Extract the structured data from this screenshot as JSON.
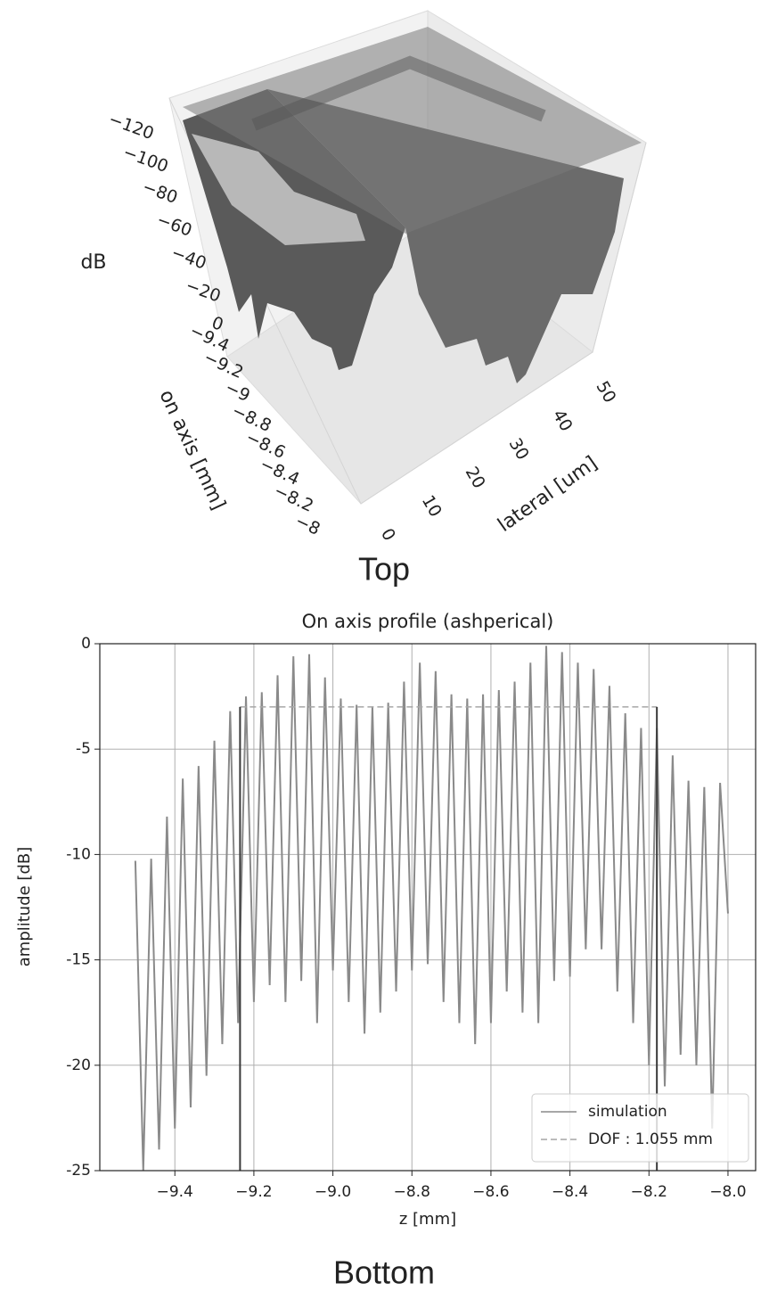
{
  "chart_data": [
    {
      "type": "surface3d",
      "caption": "Top",
      "xlabel": "on axis [mm]",
      "ylabel": "lateral [um]",
      "zlabel": "dB",
      "xlim": [
        -9.5,
        -7.95
      ],
      "ylim": [
        0,
        55
      ],
      "zlim": [
        -130,
        5
      ],
      "xticks": [
        {
          "value": -9.4,
          "label": "−9.4"
        },
        {
          "value": -9.2,
          "label": "−9.2"
        },
        {
          "value": -9,
          "label": "−9"
        },
        {
          "value": -8.8,
          "label": "−8.8"
        },
        {
          "value": -8.6,
          "label": "−8.6"
        },
        {
          "value": -8.4,
          "label": "−8.4"
        },
        {
          "value": -8.2,
          "label": "−8.2"
        },
        {
          "value": -8,
          "label": "−8"
        }
      ],
      "yticks": [
        0,
        10,
        20,
        30,
        40,
        50
      ],
      "zticks": [
        0,
        {
          "value": -20,
          "label": "−20"
        },
        {
          "value": -40,
          "label": "−40"
        },
        {
          "value": -60,
          "label": "−60"
        },
        {
          "value": -80,
          "label": "−80"
        },
        {
          "value": -100,
          "label": "−100"
        },
        {
          "value": -120,
          "label": "−120"
        }
      ]
    },
    {
      "type": "line",
      "caption": "Bottom",
      "title": "On axis profile (ashperical)",
      "xlabel": "z [mm]",
      "ylabel": "amplitude [dB]",
      "xlim": [
        -9.59,
        -7.93
      ],
      "ylim": [
        -25,
        0
      ],
      "xticks": [
        {
          "value": -9.4,
          "label": "−9.4"
        },
        {
          "value": -9.2,
          "label": "−9.2"
        },
        {
          "value": -9.0,
          "label": "−9.0"
        },
        {
          "value": -8.8,
          "label": "−8.8"
        },
        {
          "value": -8.6,
          "label": "−8.6"
        },
        {
          "value": -8.4,
          "label": "−8.4"
        },
        {
          "value": -8.2,
          "label": "−8.2"
        },
        {
          "value": -8.0,
          "label": "−8.0"
        }
      ],
      "yticks": [
        0,
        -5,
        -10,
        -15,
        -20,
        -25
      ],
      "grid": true,
      "legend": "lower right",
      "series": [
        {
          "name": "simulation",
          "color": "#8a8a8a",
          "style": "solid",
          "x": [
            -9.5,
            -9.48,
            -9.46,
            -9.44,
            -9.42,
            -9.4,
            -9.38,
            -9.36,
            -9.34,
            -9.32,
            -9.3,
            -9.28,
            -9.26,
            -9.24,
            -9.22,
            -9.2,
            -9.18,
            -9.16,
            -9.14,
            -9.12,
            -9.1,
            -9.08,
            -9.06,
            -9.04,
            -9.02,
            -9.0,
            -8.98,
            -8.96,
            -8.94,
            -8.92,
            -8.9,
            -8.88,
            -8.86,
            -8.84,
            -8.82,
            -8.8,
            -8.78,
            -8.76,
            -8.74,
            -8.72,
            -8.7,
            -8.68,
            -8.66,
            -8.64,
            -8.62,
            -8.6,
            -8.58,
            -8.56,
            -8.54,
            -8.52,
            -8.5,
            -8.48,
            -8.46,
            -8.44,
            -8.42,
            -8.4,
            -8.38,
            -8.36,
            -8.34,
            -8.32,
            -8.3,
            -8.28,
            -8.26,
            -8.24,
            -8.22,
            -8.2,
            -8.18,
            -8.16,
            -8.14,
            -8.12,
            -8.1,
            -8.08,
            -8.06,
            -8.04,
            -8.02,
            -8.0
          ],
          "values": [
            -10.3,
            -25,
            -10.2,
            -24,
            -8.2,
            -23,
            -6.4,
            -22,
            -5.8,
            -20.5,
            -4.6,
            -19,
            -3.2,
            -18,
            -2.5,
            -17,
            -2.3,
            -16.2,
            -1.5,
            -17,
            -0.6,
            -16,
            -0.5,
            -18,
            -1.6,
            -15.5,
            -2.6,
            -17,
            -2.9,
            -18.5,
            -3.0,
            -17.5,
            -2.8,
            -16.5,
            -1.8,
            -15.5,
            -0.9,
            -15.2,
            -1.3,
            -17,
            -2.4,
            -18,
            -2.6,
            -19,
            -2.4,
            -18,
            -2.2,
            -16.5,
            -1.8,
            -17.5,
            -0.9,
            -18,
            -0.1,
            -16,
            -0.4,
            -15.8,
            -0.9,
            -14.5,
            -1.2,
            -14.5,
            -2.0,
            -16.5,
            -3.3,
            -18,
            -4.0,
            -20,
            -4.0,
            -21,
            -5.3,
            -19.5,
            -6.5,
            -20,
            -6.8,
            -23,
            -6.6,
            -12.8
          ]
        },
        {
          "name": "DOF : 1.055 mm",
          "color": "#a6a6a6",
          "style": "dashed",
          "bound_color": "#3a3a3a",
          "x": [
            -9.235,
            -8.18
          ],
          "values": [
            -3,
            -3
          ]
        }
      ]
    }
  ]
}
